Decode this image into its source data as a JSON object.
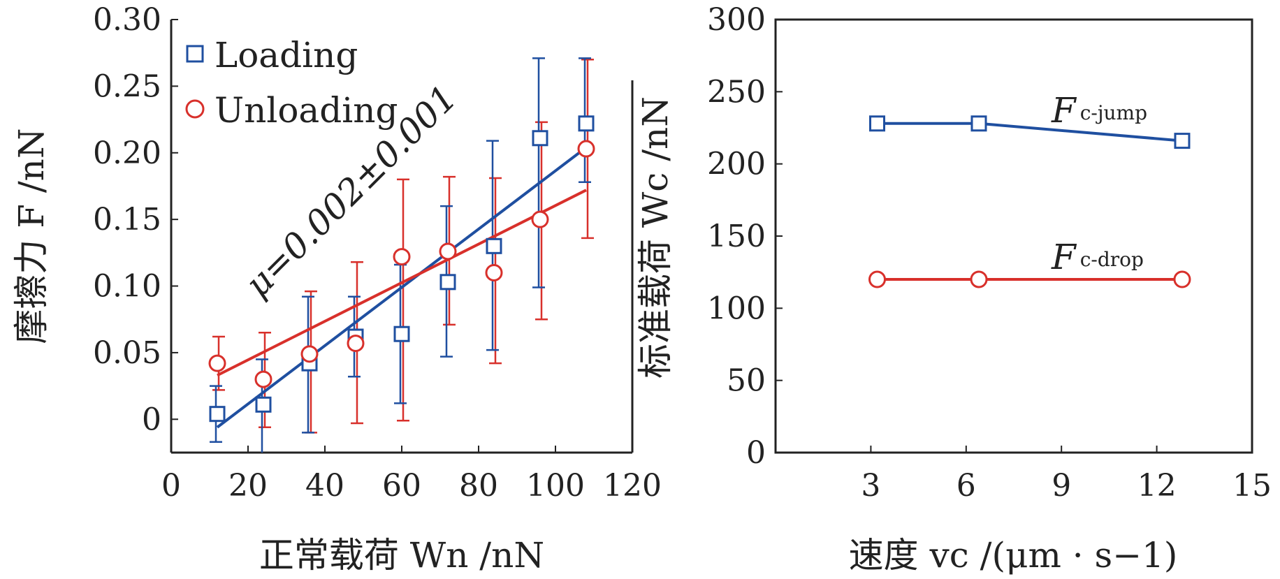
{
  "chart_data": [
    {
      "type": "scatter",
      "xlabel": "正常载荷 Wn /nN",
      "ylabel": "摩擦力 F /nN",
      "xlim": [
        0,
        120
      ],
      "ylim": [
        -0.025,
        0.3
      ],
      "xticks": [
        "0",
        "20",
        "40",
        "60",
        "80",
        "100",
        "120"
      ],
      "yticks": [
        "0",
        "0.05",
        "0.10",
        "0.15",
        "0.20",
        "0.25",
        "0.30"
      ],
      "legend_position": "top-left",
      "annotation": "μ=0.002±0.001",
      "series": [
        {
          "name": "Loading",
          "color": "#1f4fa0",
          "marker": "square",
          "x": [
            12,
            24,
            36,
            48,
            60,
            72,
            84,
            96,
            108
          ],
          "y": [
            0.004,
            0.011,
            0.042,
            0.062,
            0.064,
            0.103,
            0.13,
            0.211,
            0.222
          ],
          "err_low": [
            0.021,
            0.038,
            0.052,
            0.03,
            0.052,
            0.056,
            0.078,
            0.112,
            0.044
          ],
          "err_high": [
            0.021,
            0.034,
            0.05,
            0.03,
            0.052,
            0.057,
            0.079,
            0.06,
            0.049
          ],
          "fit": {
            "x": [
              12,
              108
            ],
            "y": [
              -0.006,
              0.204
            ]
          }
        },
        {
          "name": "Unloading",
          "color": "#d8302b",
          "marker": "circle",
          "x": [
            12,
            24,
            36,
            48,
            60,
            72,
            84,
            96,
            108
          ],
          "y": [
            0.042,
            0.03,
            0.049,
            0.057,
            0.122,
            0.126,
            0.11,
            0.15,
            0.203
          ],
          "err_low": [
            0.02,
            0.036,
            0.059,
            0.06,
            0.123,
            0.055,
            0.068,
            0.075,
            0.067
          ],
          "err_high": [
            0.02,
            0.035,
            0.047,
            0.061,
            0.058,
            0.056,
            0.071,
            0.073,
            0.067
          ],
          "fit": {
            "x": [
              12,
              108
            ],
            "y": [
              0.033,
              0.172
            ]
          }
        }
      ]
    },
    {
      "type": "line",
      "xlabel": "速度 vc /(μm · s−1)",
      "ylabel": "标准载荷 Wc /nN",
      "xlim": [
        0,
        15
      ],
      "ylim": [
        0,
        300
      ],
      "xticks": [
        "3",
        "6",
        "9",
        "12",
        "15"
      ],
      "yticks": [
        "0",
        "50",
        "100",
        "150",
        "200",
        "250",
        "300"
      ],
      "series": [
        {
          "name": "Fc-jump",
          "color": "#1f4fa0",
          "marker": "square",
          "x": [
            3.2,
            6.4,
            12.8
          ],
          "y": [
            228,
            228,
            216
          ]
        },
        {
          "name": "Fc-drop",
          "color": "#d8302b",
          "marker": "circle",
          "x": [
            3.2,
            6.4,
            12.8
          ],
          "y": [
            120,
            120,
            120
          ]
        }
      ],
      "series_labels": [
        {
          "main": "F",
          "sub": "c-jump"
        },
        {
          "main": "F",
          "sub": "c-drop"
        }
      ]
    }
  ]
}
